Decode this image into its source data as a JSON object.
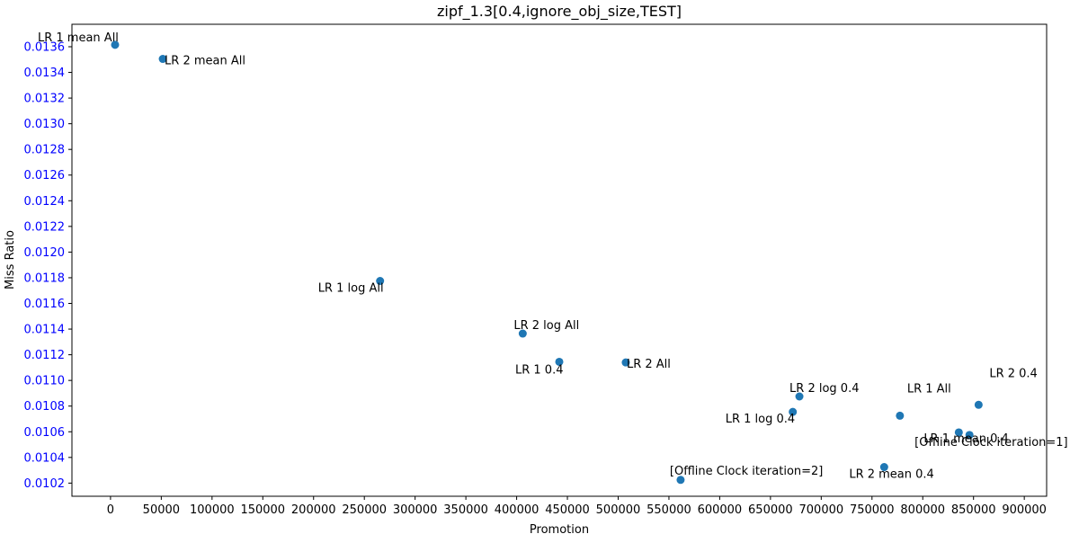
{
  "chart_data": {
    "type": "scatter",
    "title": "zipf_1.3[0.4,ignore_obj_size,TEST]",
    "xlabel": "Promotion",
    "ylabel": "Miss Ratio",
    "xlim": [
      -38000,
      922000
    ],
    "ylim": [
      0.0100975,
      0.013775
    ],
    "x_ticks": [
      0,
      50000,
      100000,
      150000,
      200000,
      250000,
      300000,
      350000,
      400000,
      450000,
      500000,
      550000,
      600000,
      650000,
      700000,
      750000,
      800000,
      850000,
      900000
    ],
    "y_ticks": [
      0.0102,
      0.0104,
      0.0106,
      0.0108,
      0.011,
      0.0112,
      0.0114,
      0.0116,
      0.0118,
      0.012,
      0.0122,
      0.0124,
      0.0126,
      0.0128,
      0.013,
      0.0132,
      0.0134,
      0.0136
    ],
    "y_tick_labels": [
      "0.0102",
      "0.0104",
      "0.0106",
      "0.0108",
      "0.0110",
      "0.0112",
      "0.0114",
      "0.0116",
      "0.0118",
      "0.0120",
      "0.0122",
      "0.0124",
      "0.0126",
      "0.0128",
      "0.0130",
      "0.0132",
      "0.0134",
      "0.0136"
    ],
    "grid": false,
    "colors": {
      "point": "#1f77b4",
      "ytick_label": "#0000ff",
      "text": "#000000"
    },
    "points": [
      {
        "x": 4500,
        "y": 0.013615,
        "label": "LR 1 mean All"
      },
      {
        "x": 51500,
        "y": 0.013505,
        "label": "LR 2 mean All"
      },
      {
        "x": 265500,
        "y": 0.011775,
        "label": "LR 1 log All"
      },
      {
        "x": 406000,
        "y": 0.011365,
        "label": "LR 2 log All"
      },
      {
        "x": 442000,
        "y": 0.011145,
        "label": "LR 1 0.4"
      },
      {
        "x": 507500,
        "y": 0.01114,
        "label": "LR 2 All"
      },
      {
        "x": 561500,
        "y": 0.010225,
        "label": "[Offline Clock iteration=2]"
      },
      {
        "x": 672000,
        "y": 0.010755,
        "label": "LR 1 log 0.4"
      },
      {
        "x": 678500,
        "y": 0.010875,
        "label": "LR 2 log 0.4"
      },
      {
        "x": 777500,
        "y": 0.010725,
        "label": "LR 1 All"
      },
      {
        "x": 835500,
        "y": 0.010595,
        "label": "LR 1 mean 0.4"
      },
      {
        "x": 846000,
        "y": 0.010575,
        "label": "[Offline Clock iteration=1]"
      },
      {
        "x": 855000,
        "y": 0.01081,
        "label": "LR 2 0.4"
      },
      {
        "x": 762000,
        "y": 0.010325,
        "label": "LR 2 mean 0.4"
      }
    ]
  }
}
